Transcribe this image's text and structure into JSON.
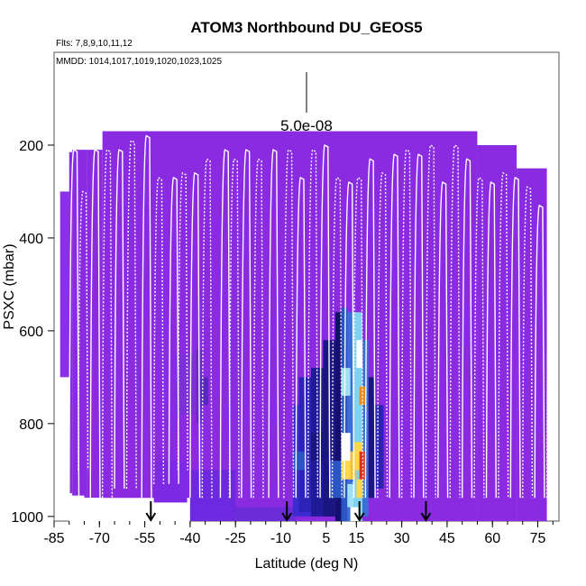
{
  "chart_data": {
    "type": "heatmap",
    "title": "ATOM3 Northbound DU_GEOS5",
    "flights_label": "Flts: 7,8,9,10,11,12",
    "dates_label": "MMDD: 1014,1017,1019,1020,1023,1025",
    "xlabel": "Latitude (deg N)",
    "ylabel": "PSXC (mbar)",
    "xlim": [
      -85,
      82
    ],
    "ylim": [
      1010,
      0
    ],
    "x_ticks": [
      -85,
      -70,
      -55,
      -40,
      -25,
      -10,
      5,
      15,
      30,
      45,
      60,
      75
    ],
    "y_ticks": [
      200,
      400,
      600,
      800,
      1000
    ],
    "scale_bar_value": "5.0e-08",
    "arrow_latitudes": [
      -53,
      -8,
      16,
      38
    ],
    "colors": {
      "background": "#8a2be2",
      "low": "#7a2be0",
      "mid": "#3b2bd0",
      "navy": "#1a1680",
      "blue": "#3c6fd6",
      "cyan": "#7fd3f0",
      "white": "#ffffff",
      "yellow": "#ffd84a",
      "orange": "#f08a1a",
      "red": "#e0301a",
      "track": "#ffffff"
    }
  }
}
